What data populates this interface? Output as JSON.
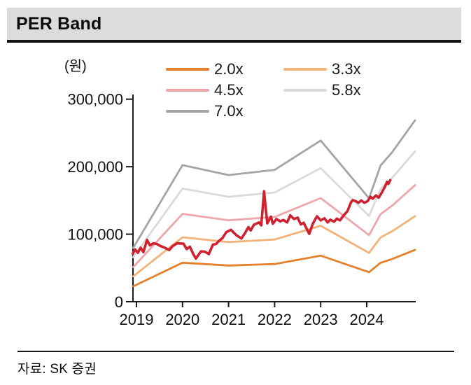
{
  "header": {
    "title": "PER Band"
  },
  "footer": {
    "source": "자료: SK 증권"
  },
  "chart_data": {
    "type": "line",
    "title": "PER Band",
    "unit_label": "(원)",
    "legend_position": "top",
    "grid": false,
    "y_axis": {
      "range": [
        0,
        300000
      ],
      "ticks": [
        {
          "label": "300,000",
          "value": 300000
        },
        {
          "label": "200,000",
          "value": 200000
        },
        {
          "label": "100,000",
          "value": 100000
        },
        {
          "label": "0",
          "value": 0
        }
      ]
    },
    "x_axis": {
      "range": [
        2018.92,
        2025.07
      ],
      "ticks": [
        {
          "label": "2019",
          "t": 2019
        },
        {
          "label": "2020",
          "t": 2020
        },
        {
          "label": "2021",
          "t": 2021
        },
        {
          "label": "2022",
          "t": 2022
        },
        {
          "label": "2023",
          "t": 2023
        },
        {
          "label": "2024",
          "t": 2024
        }
      ]
    },
    "bands": {
      "t": [
        2018.93,
        2020,
        2021,
        2022,
        2023,
        2024.05,
        2024.3,
        2024.55,
        2025.05
      ],
      "series": [
        {
          "name": "2.0x",
          "color": "#E5812C",
          "values": [
            22800,
            57800,
            53600,
            55800,
            68200,
            43800,
            57600,
            63200,
            76800
          ]
        },
        {
          "name": "3.3x",
          "color": "#F3B279",
          "values": [
            37600,
            95400,
            88400,
            92100,
            112500,
            72300,
            95000,
            104300,
            126700
          ]
        },
        {
          "name": "4.5x",
          "color": "#EFA6AB",
          "values": [
            51300,
            130100,
            120600,
            125600,
            153500,
            98600,
            129600,
            142200,
            172800
          ]
        },
        {
          "name": "5.8x",
          "color": "#DADADA",
          "values": [
            66100,
            167600,
            155400,
            161800,
            197800,
            127000,
            167000,
            183300,
            222700
          ]
        },
        {
          "name": "7.0x",
          "color": "#A6A4A5",
          "values": [
            79800,
            202300,
            187600,
            195300,
            238700,
            153300,
            201600,
            221200,
            268800
          ]
        }
      ]
    },
    "price": {
      "name": "price",
      "color": "#CF2130",
      "points": [
        [
          2018.92,
          71000
        ],
        [
          2018.97,
          77500
        ],
        [
          2019.03,
          72500
        ],
        [
          2019.09,
          80000
        ],
        [
          2019.15,
          73500
        ],
        [
          2019.23,
          91500
        ],
        [
          2019.29,
          83500
        ],
        [
          2019.36,
          86500
        ],
        [
          2019.44,
          85500
        ],
        [
          2019.52,
          82500
        ],
        [
          2019.6,
          80500
        ],
        [
          2019.71,
          76500
        ],
        [
          2019.78,
          82000
        ],
        [
          2019.88,
          86500
        ],
        [
          2020.02,
          86000
        ],
        [
          2020.09,
          78000
        ],
        [
          2020.16,
          81500
        ],
        [
          2020.23,
          71000
        ],
        [
          2020.29,
          64000
        ],
        [
          2020.4,
          74500
        ],
        [
          2020.49,
          74000
        ],
        [
          2020.57,
          70500
        ],
        [
          2020.66,
          84500
        ],
        [
          2020.73,
          85500
        ],
        [
          2020.79,
          90000
        ],
        [
          2020.87,
          94500
        ],
        [
          2020.95,
          103000
        ],
        [
          2021.05,
          106500
        ],
        [
          2021.17,
          98500
        ],
        [
          2021.28,
          93500
        ],
        [
          2021.36,
          102000
        ],
        [
          2021.43,
          110500
        ],
        [
          2021.48,
          105500
        ],
        [
          2021.55,
          114000
        ],
        [
          2021.66,
          117500
        ],
        [
          2021.71,
          113000
        ],
        [
          2021.77,
          163500
        ],
        [
          2021.84,
          116000
        ],
        [
          2021.92,
          126000
        ],
        [
          2021.96,
          115500
        ],
        [
          2022.04,
          122500
        ],
        [
          2022.12,
          119000
        ],
        [
          2022.19,
          121000
        ],
        [
          2022.27,
          117500
        ],
        [
          2022.34,
          128000
        ],
        [
          2022.42,
          122500
        ],
        [
          2022.5,
          124500
        ],
        [
          2022.57,
          114500
        ],
        [
          2022.63,
          117000
        ],
        [
          2022.75,
          100500
        ],
        [
          2022.83,
          115500
        ],
        [
          2022.92,
          126500
        ],
        [
          2023.0,
          120500
        ],
        [
          2023.08,
          123500
        ],
        [
          2023.15,
          117500
        ],
        [
          2023.21,
          121500
        ],
        [
          2023.29,
          118500
        ],
        [
          2023.35,
          123000
        ],
        [
          2023.42,
          120500
        ],
        [
          2023.5,
          128000
        ],
        [
          2023.58,
          134000
        ],
        [
          2023.66,
          147500
        ],
        [
          2023.7,
          150500
        ],
        [
          2023.76,
          149000
        ],
        [
          2023.82,
          146500
        ],
        [
          2023.88,
          150000
        ],
        [
          2023.95,
          146500
        ],
        [
          2024.02,
          149000
        ],
        [
          2024.08,
          155500
        ],
        [
          2024.13,
          152500
        ],
        [
          2024.2,
          157500
        ],
        [
          2024.26,
          154000
        ],
        [
          2024.33,
          162000
        ],
        [
          2024.4,
          171000
        ],
        [
          2024.44,
          177500
        ],
        [
          2024.47,
          174500
        ],
        [
          2024.51,
          180000
        ]
      ]
    }
  }
}
